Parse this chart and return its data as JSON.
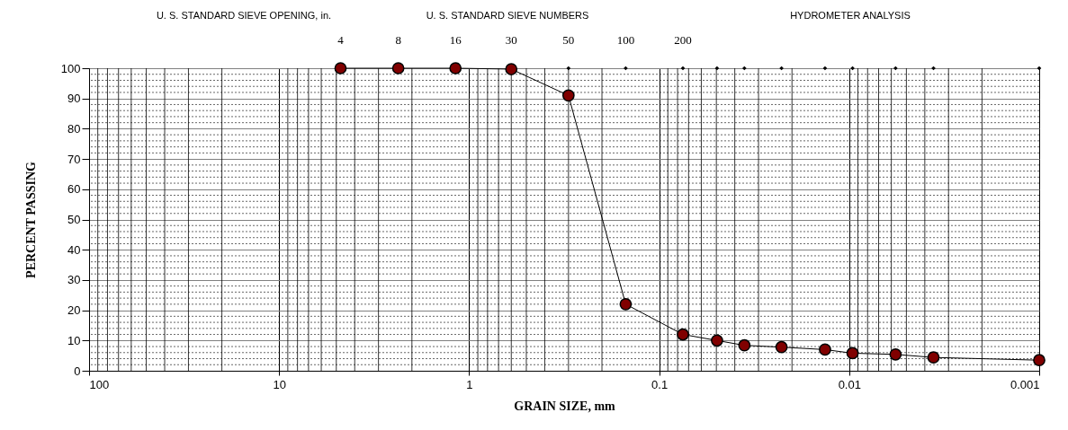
{
  "chart_data": {
    "type": "line",
    "xlabel": "GRAIN SIZE, mm",
    "ylabel": "PERCENT PASSING",
    "log": "x",
    "grid": true,
    "annotations": [
      "U. S. STANDARD SIEVE OPENING, in.",
      "U. S. STANDARD SIEVE NUMBERS",
      "HYDROMETER ANALYSIS",
      {
        "text": "4",
        "x": 4.75,
        "y": 100
      },
      {
        "text": "8",
        "x": 2.36,
        "y": 100
      },
      {
        "text": "16",
        "x": 1.18,
        "y": 100
      },
      {
        "text": "30",
        "x": 0.6,
        "y": 100
      },
      {
        "text": "50",
        "x": 0.3,
        "y": 100
      },
      {
        "text": "100",
        "x": 0.15,
        "y": 100
      },
      {
        "text": "200",
        "x": 0.075,
        "y": 100
      }
    ],
    "xlim": [
      100,
      0.001
    ],
    "xticks": [
      100,
      10,
      1,
      0.1,
      0.01,
      0.001
    ],
    "ylim": [
      0,
      100
    ],
    "yticks": [
      0,
      10,
      20,
      30,
      40,
      50,
      60,
      70,
      80,
      90,
      100
    ],
    "series": [
      {
        "color": "#800000",
        "marker": "circle",
        "x": [
          4.75,
          2.36,
          1.18,
          0.6,
          0.3,
          0.15,
          0.075,
          0.0496,
          0.0356,
          0.0227,
          0.0134,
          0.0096,
          0.0057,
          0.0036,
          0.001
        ],
        "values": [
          100,
          100,
          100,
          99.7,
          91,
          22,
          12,
          10,
          8.4,
          7.8,
          7,
          5.8,
          5.4,
          4.4,
          3.5
        ]
      },
      {
        "type": "scatter",
        "color": "#000000",
        "marker": "diamond",
        "x": [
          0.3,
          0.15,
          0.075,
          0.0496,
          0.0356,
          0.0227,
          0.0134,
          0.0096,
          0.0057,
          0.0036,
          0.001
        ],
        "values": [
          100,
          100,
          100,
          100,
          100,
          100,
          100,
          100,
          100,
          100,
          100
        ]
      }
    ]
  }
}
